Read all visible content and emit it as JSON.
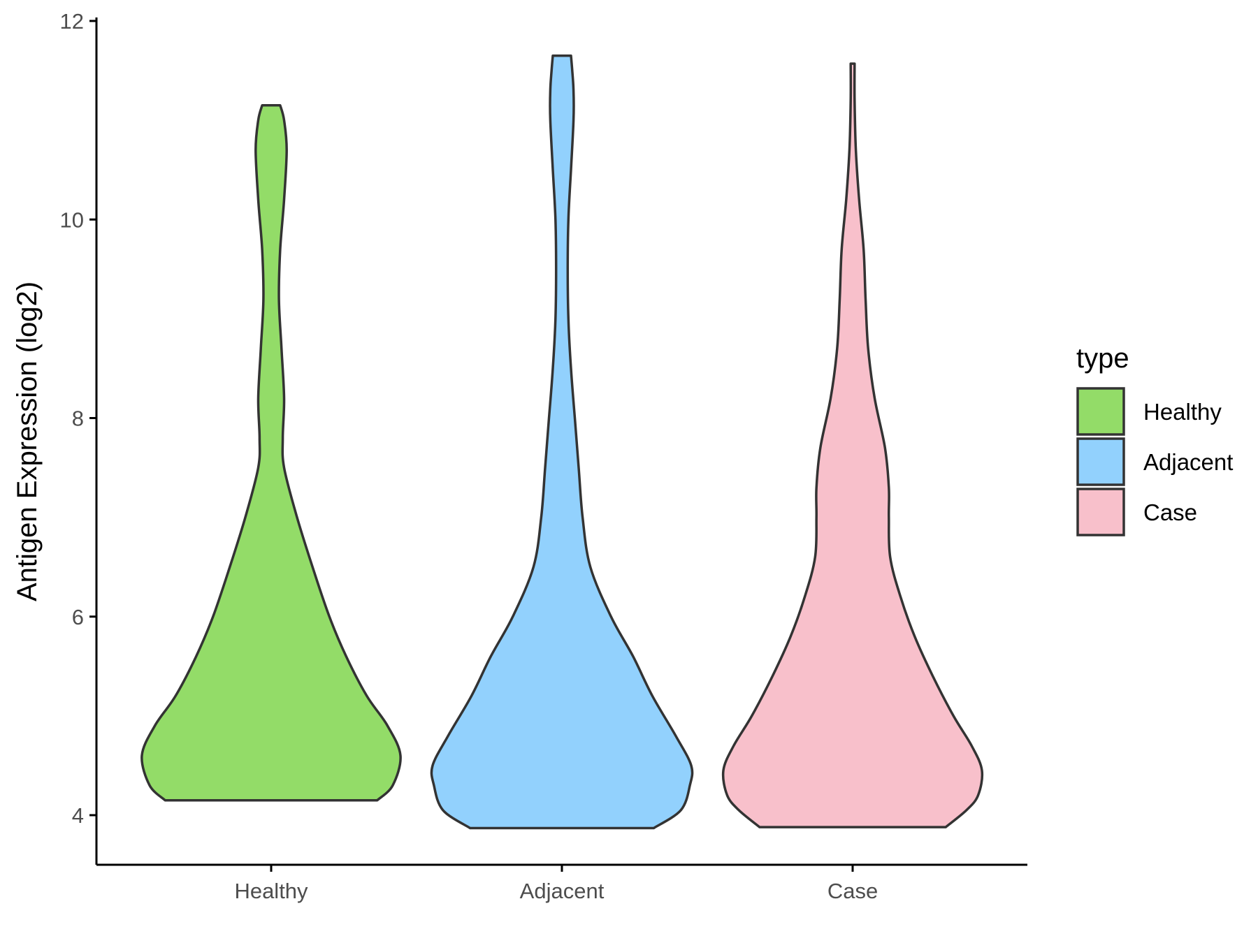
{
  "chart_data": {
    "type": "violin",
    "title": "",
    "xlabel": "",
    "ylabel": "Antigen Expression (log2)",
    "ylim": [
      3.5,
      12
    ],
    "yticks": [
      4,
      6,
      8,
      10,
      12
    ],
    "categories": [
      "Healthy",
      "Adjacent",
      "Case"
    ],
    "grid": false,
    "legend": {
      "title": "type",
      "position": "right",
      "entries": [
        "Healthy",
        "Adjacent",
        "Case"
      ]
    },
    "series": [
      {
        "name": "Healthy",
        "color": "#93dc68",
        "min": 4.15,
        "max": 11.15,
        "density_profile": [
          [
            4.15,
            0.82
          ],
          [
            4.3,
            0.94
          ],
          [
            4.6,
            1.0
          ],
          [
            4.9,
            0.9
          ],
          [
            5.2,
            0.74
          ],
          [
            5.6,
            0.58
          ],
          [
            6.0,
            0.45
          ],
          [
            6.5,
            0.32
          ],
          [
            7.0,
            0.2
          ],
          [
            7.5,
            0.1
          ],
          [
            7.8,
            0.09
          ],
          [
            8.2,
            0.1
          ],
          [
            8.7,
            0.08
          ],
          [
            9.2,
            0.06
          ],
          [
            9.7,
            0.07
          ],
          [
            10.2,
            0.1
          ],
          [
            10.7,
            0.12
          ],
          [
            11.0,
            0.1
          ],
          [
            11.15,
            0.07
          ]
        ]
      },
      {
        "name": "Adjacent",
        "color": "#92d1fd",
        "min": 3.87,
        "max": 11.65,
        "density_profile": [
          [
            3.87,
            0.71
          ],
          [
            4.05,
            0.92
          ],
          [
            4.3,
            0.99
          ],
          [
            4.5,
            1.0
          ],
          [
            4.8,
            0.88
          ],
          [
            5.2,
            0.7
          ],
          [
            5.6,
            0.55
          ],
          [
            6.0,
            0.38
          ],
          [
            6.5,
            0.22
          ],
          [
            7.0,
            0.16
          ],
          [
            7.5,
            0.13
          ],
          [
            8.0,
            0.1
          ],
          [
            8.5,
            0.07
          ],
          [
            9.0,
            0.05
          ],
          [
            9.5,
            0.045
          ],
          [
            10.0,
            0.05
          ],
          [
            10.5,
            0.07
          ],
          [
            11.0,
            0.09
          ],
          [
            11.3,
            0.09
          ],
          [
            11.5,
            0.08
          ],
          [
            11.65,
            0.07
          ]
        ]
      },
      {
        "name": "Case",
        "color": "#f8c0cb",
        "min": 3.88,
        "max": 11.57,
        "density_profile": [
          [
            3.88,
            0.72
          ],
          [
            4.05,
            0.88
          ],
          [
            4.2,
            0.97
          ],
          [
            4.45,
            1.0
          ],
          [
            4.7,
            0.92
          ],
          [
            5.0,
            0.78
          ],
          [
            5.4,
            0.62
          ],
          [
            5.8,
            0.48
          ],
          [
            6.2,
            0.37
          ],
          [
            6.6,
            0.29
          ],
          [
            7.0,
            0.28
          ],
          [
            7.3,
            0.28
          ],
          [
            7.7,
            0.25
          ],
          [
            8.2,
            0.17
          ],
          [
            8.7,
            0.12
          ],
          [
            9.2,
            0.1
          ],
          [
            9.7,
            0.085
          ],
          [
            10.2,
            0.05
          ],
          [
            10.7,
            0.025
          ],
          [
            11.2,
            0.015
          ],
          [
            11.57,
            0.015
          ]
        ]
      }
    ]
  }
}
